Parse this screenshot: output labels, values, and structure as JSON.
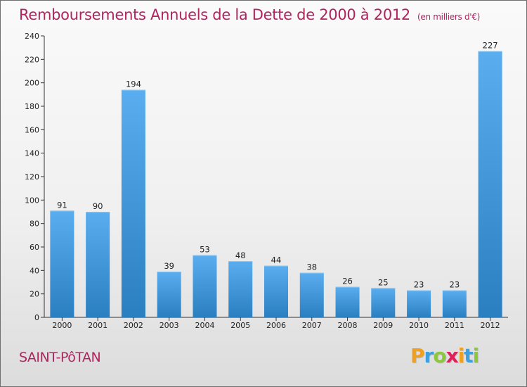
{
  "chart_data": {
    "type": "bar",
    "title": "Remboursements Annuels de la Dette de 2000 à 2012",
    "unit_note": "(en milliers d'€)",
    "categories": [
      "2000",
      "2001",
      "2002",
      "2003",
      "2004",
      "2005",
      "2006",
      "2007",
      "2008",
      "2009",
      "2010",
      "2011",
      "2012"
    ],
    "values": [
      91,
      90,
      194,
      39,
      53,
      48,
      44,
      38,
      26,
      25,
      23,
      23,
      227
    ],
    "ylim": [
      0,
      240
    ],
    "yticks": [
      0,
      20,
      40,
      60,
      80,
      100,
      120,
      140,
      160,
      180,
      200,
      220,
      240
    ],
    "grid": false,
    "bar_color_top": "#5aaef0",
    "bar_color_bottom": "#2a7fc0",
    "title_color": "#b0245f"
  },
  "footer": {
    "commune": "SAINT-PôTAN"
  },
  "logo": {
    "letters": [
      {
        "ch": "P",
        "color": "#f0a020"
      },
      {
        "ch": "r",
        "color": "#3aa0e0"
      },
      {
        "ch": "o",
        "color": "#8cc63f"
      },
      {
        "ch": "x",
        "color": "#e0205a"
      },
      {
        "ch": "i",
        "color": "#f0a020"
      },
      {
        "ch": "t",
        "color": "#3aa0e0"
      },
      {
        "ch": "i",
        "color": "#8cc63f"
      }
    ]
  }
}
